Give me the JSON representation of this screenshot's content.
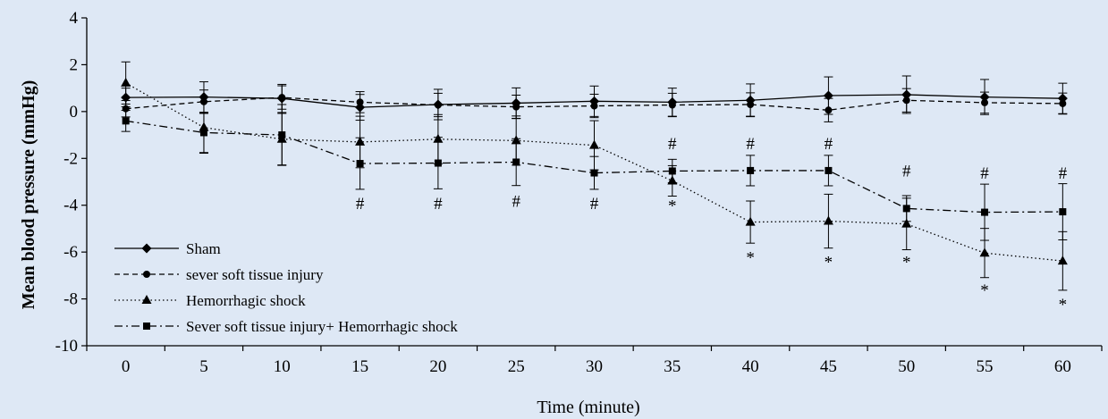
{
  "chart_data": {
    "type": "line",
    "xlabel": "Time (minute)",
    "ylabel": "Mean blood pressure (mmHg)",
    "x": [
      0,
      5,
      10,
      15,
      20,
      25,
      30,
      35,
      40,
      45,
      50,
      55,
      60
    ],
    "xlim": [
      -2.5,
      62.5
    ],
    "ylim": [
      -10,
      4
    ],
    "yticks": [
      4,
      2,
      0,
      -2,
      -4,
      -6,
      -8,
      -10
    ],
    "xticks": [
      0,
      5,
      10,
      15,
      20,
      25,
      30,
      35,
      40,
      45,
      50,
      55,
      60
    ],
    "grid": false,
    "legend_position": "bottom-left",
    "series": [
      {
        "name": "Sham",
        "marker": "diamond",
        "line": "solid",
        "values": [
          0.6,
          0.62,
          0.56,
          0.18,
          0.3,
          0.36,
          0.44,
          0.4,
          0.48,
          0.68,
          0.72,
          0.62,
          0.56
        ],
        "errors": [
          0.4,
          0.65,
          0.6,
          0.55,
          0.65,
          0.65,
          0.65,
          0.6,
          0.7,
          0.8,
          0.8,
          0.75,
          0.65
        ]
      },
      {
        "name": "sever soft tissue injury",
        "marker": "circle",
        "line": "dashed",
        "values": [
          0.12,
          0.42,
          0.6,
          0.4,
          0.28,
          0.2,
          0.24,
          0.28,
          0.3,
          0.06,
          0.48,
          0.38,
          0.34
        ],
        "errors": [
          0.35,
          0.5,
          0.5,
          0.45,
          0.5,
          0.5,
          0.5,
          0.5,
          0.5,
          0.5,
          0.5,
          0.45,
          0.45
        ]
      },
      {
        "name": "Hemorrhagic shock",
        "marker": "triangle",
        "line": "dotted",
        "values": [
          1.22,
          -0.68,
          -1.18,
          -1.3,
          -1.18,
          -1.24,
          -1.44,
          -2.96,
          -4.72,
          -4.68,
          -4.8,
          -6.04,
          -6.38
        ],
        "errors": [
          0.9,
          1.1,
          1.1,
          1.1,
          1.05,
          1.05,
          1.05,
          0.65,
          0.9,
          1.15,
          1.1,
          1.05,
          1.25
        ]
      },
      {
        "name": "Sever soft tissue injury+ Hemorrhagic shock",
        "marker": "square",
        "line": "dashdot",
        "values": [
          -0.4,
          -0.9,
          -1.0,
          -2.22,
          -2.2,
          -2.16,
          -2.62,
          -2.54,
          -2.52,
          -2.52,
          -4.14,
          -4.3,
          -4.28
        ],
        "errors": [
          0.45,
          0.85,
          1.3,
          1.1,
          1.1,
          1.0,
          0.7,
          0.5,
          0.65,
          0.65,
          0.55,
          1.2,
          1.2
        ]
      }
    ],
    "annotations": [
      {
        "x": 15,
        "y": -3.9,
        "text": "#"
      },
      {
        "x": 20,
        "y": -3.9,
        "text": "#"
      },
      {
        "x": 25,
        "y": -3.8,
        "text": "#"
      },
      {
        "x": 30,
        "y": -3.9,
        "text": "#"
      },
      {
        "x": 35,
        "y": -1.35,
        "text": "#"
      },
      {
        "x": 35,
        "y": -4.0,
        "text": "*"
      },
      {
        "x": 40,
        "y": -1.35,
        "text": "#"
      },
      {
        "x": 40,
        "y": -6.2,
        "text": "*"
      },
      {
        "x": 45,
        "y": -1.35,
        "text": "#"
      },
      {
        "x": 45,
        "y": -6.4,
        "text": "*"
      },
      {
        "x": 50,
        "y": -2.5,
        "text": "#"
      },
      {
        "x": 50,
        "y": -6.4,
        "text": "*"
      },
      {
        "x": 55,
        "y": -2.6,
        "text": "#"
      },
      {
        "x": 55,
        "y": -7.6,
        "text": "*"
      },
      {
        "x": 60,
        "y": -2.6,
        "text": "#"
      },
      {
        "x": 60,
        "y": -8.2,
        "text": "*"
      }
    ],
    "colors": {
      "background": "#dee8f5",
      "ink": "#000000"
    }
  }
}
